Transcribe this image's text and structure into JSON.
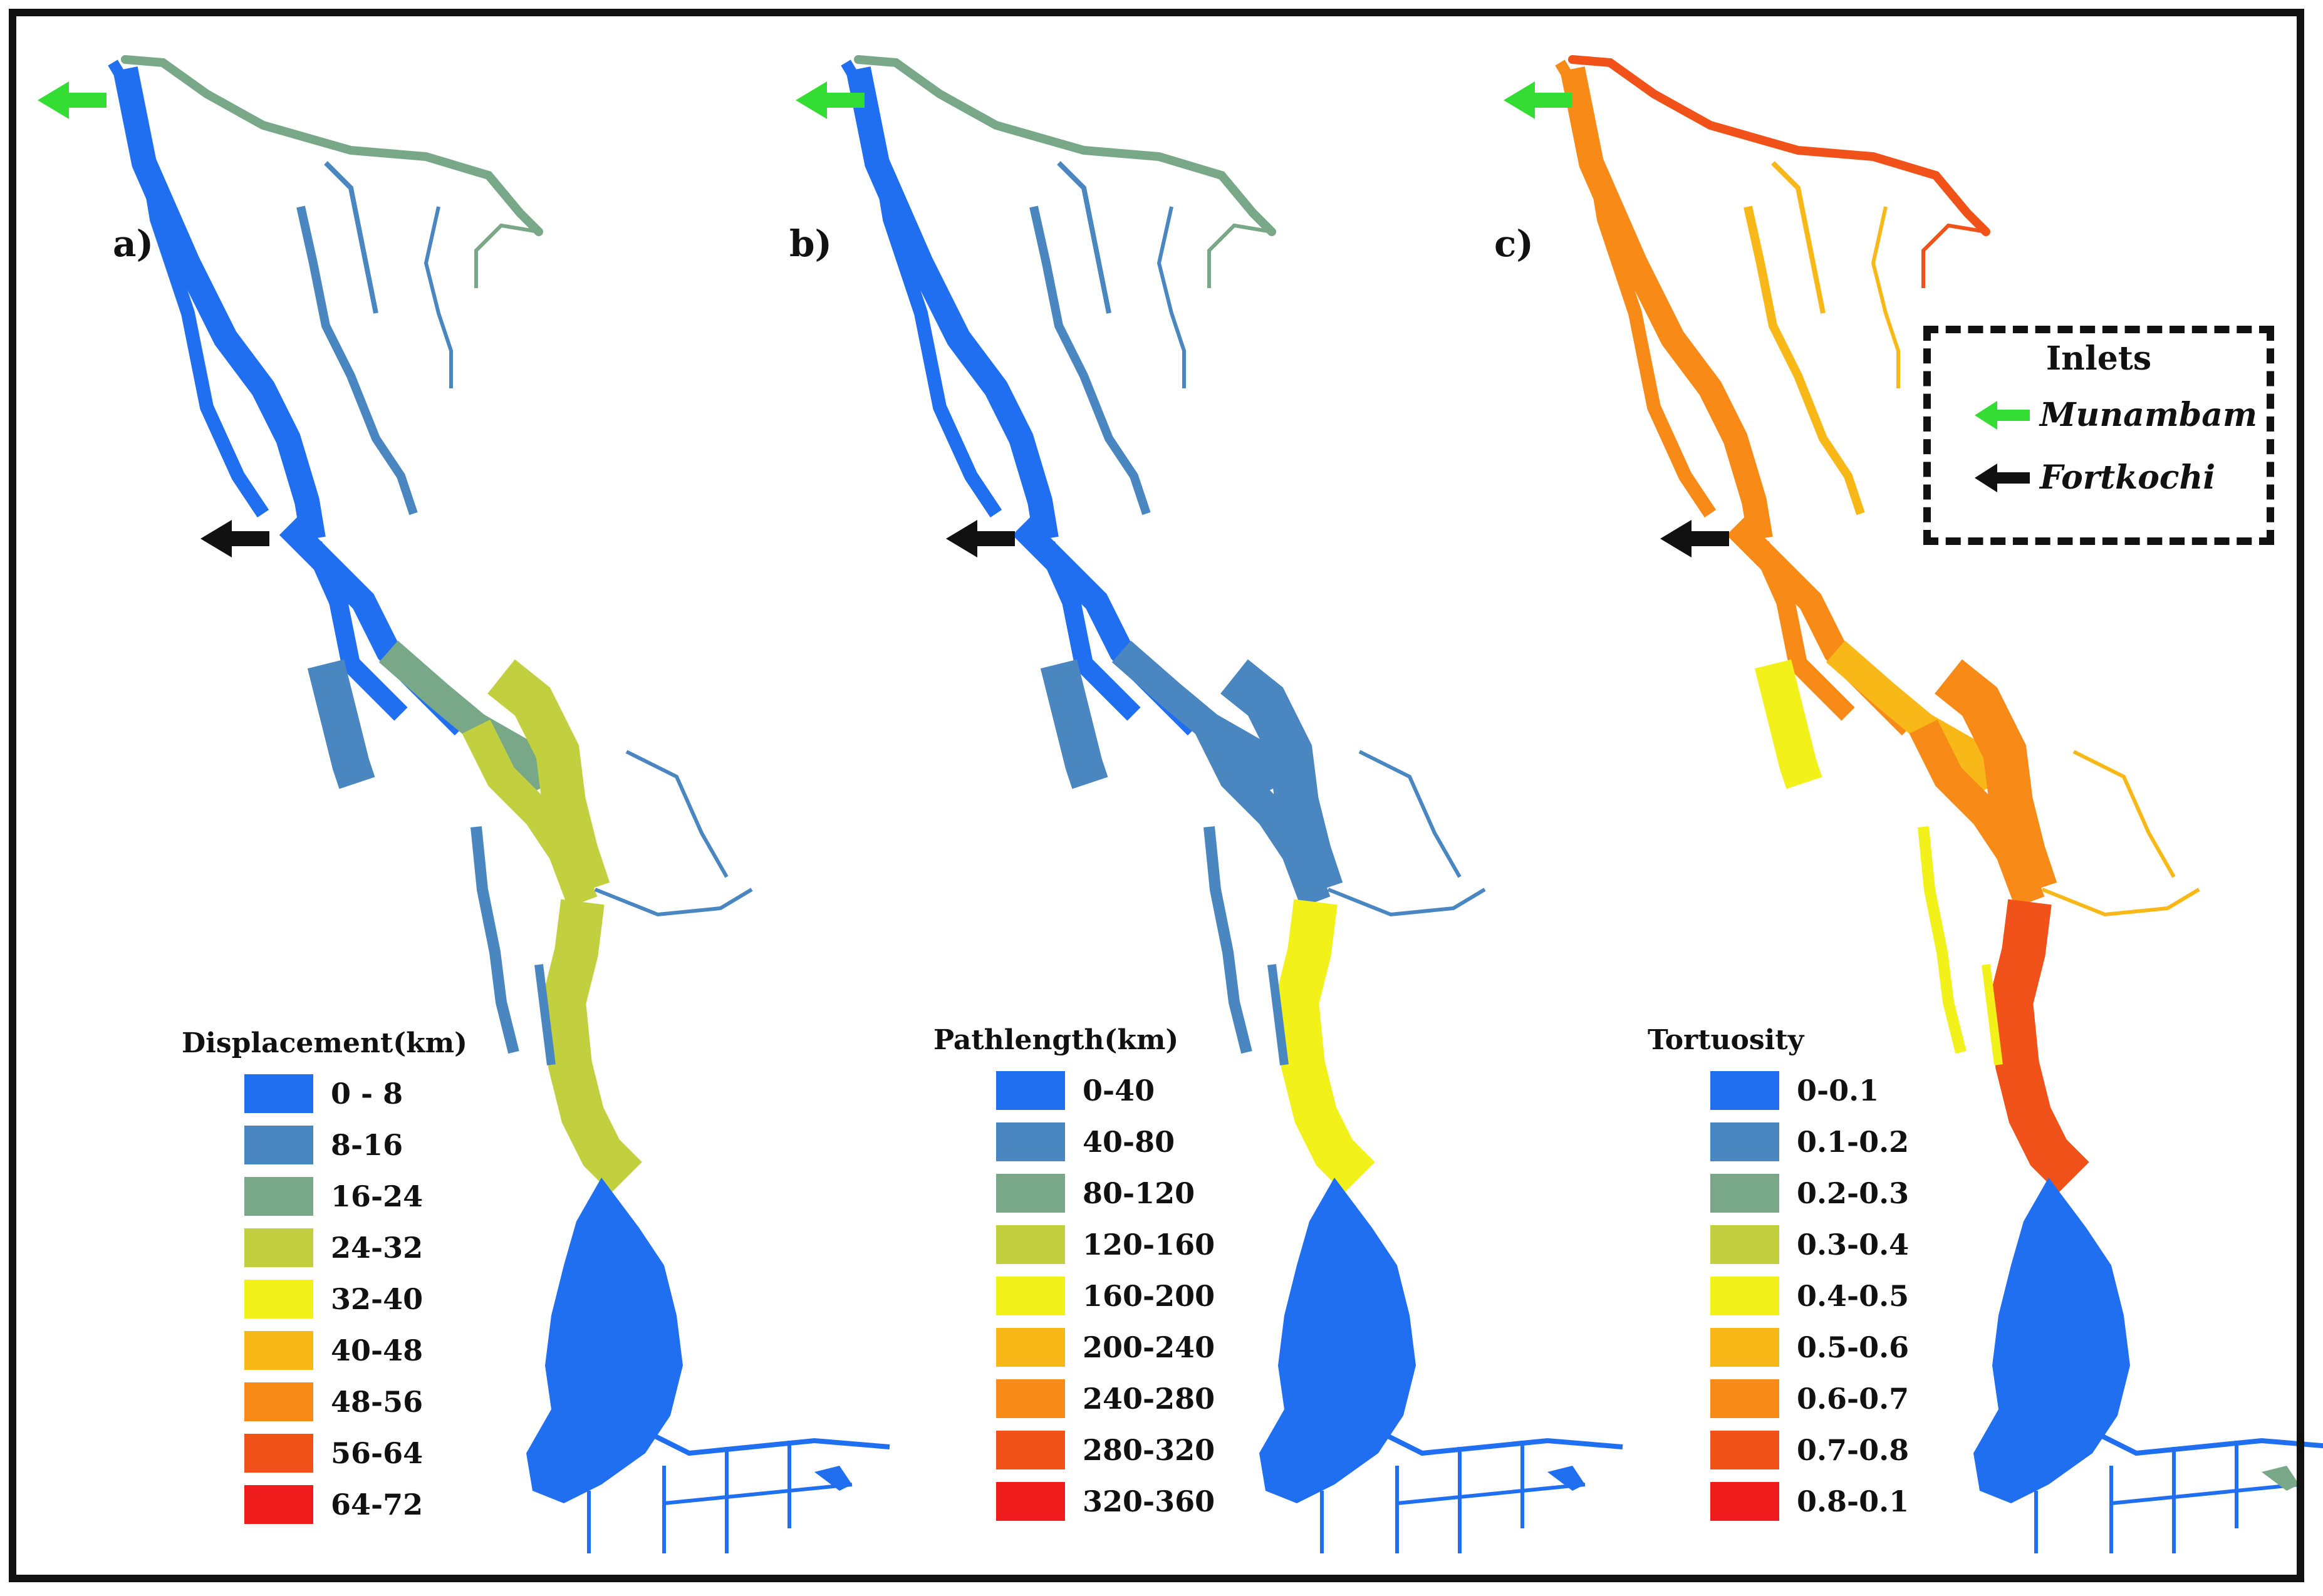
{
  "panels": [
    {
      "label": "a)",
      "legend": {
        "title": "Displacement(km)",
        "classes": [
          "0 - 8",
          "8-16",
          "16-24",
          "24-32",
          "32-40",
          "40-48",
          "48-56",
          "56-64",
          "64-72"
        ]
      }
    },
    {
      "label": "b)",
      "legend": {
        "title": "Pathlength(km)",
        "classes": [
          "0-40",
          "40-80",
          "80-120",
          "120-160",
          "160-200",
          "200-240",
          "240-280",
          "280-320",
          "320-360"
        ]
      }
    },
    {
      "label": "c)",
      "legend": {
        "title": "Tortuosity",
        "classes": [
          "0-0.1",
          "0.1-0.2",
          "0.2-0.3",
          "0.3-0.4",
          "0.4-0.5",
          "0.5-0.6",
          "0.6-0.7",
          "0.7-0.8",
          "0.8-0.1"
        ]
      }
    }
  ],
  "class_colors": [
    "#1f6ff0",
    "#4a86c0",
    "#78a888",
    "#c2d040",
    "#f2f21a",
    "#f8b818",
    "#f88a18",
    "#f0521a",
    "#ee1c1c"
  ],
  "inlets": {
    "title": "Inlets",
    "items": [
      {
        "name": "Munambam",
        "arrow_color": "#33dd33"
      },
      {
        "name": "Fortkochi",
        "arrow_color": "#111111"
      }
    ]
  }
}
